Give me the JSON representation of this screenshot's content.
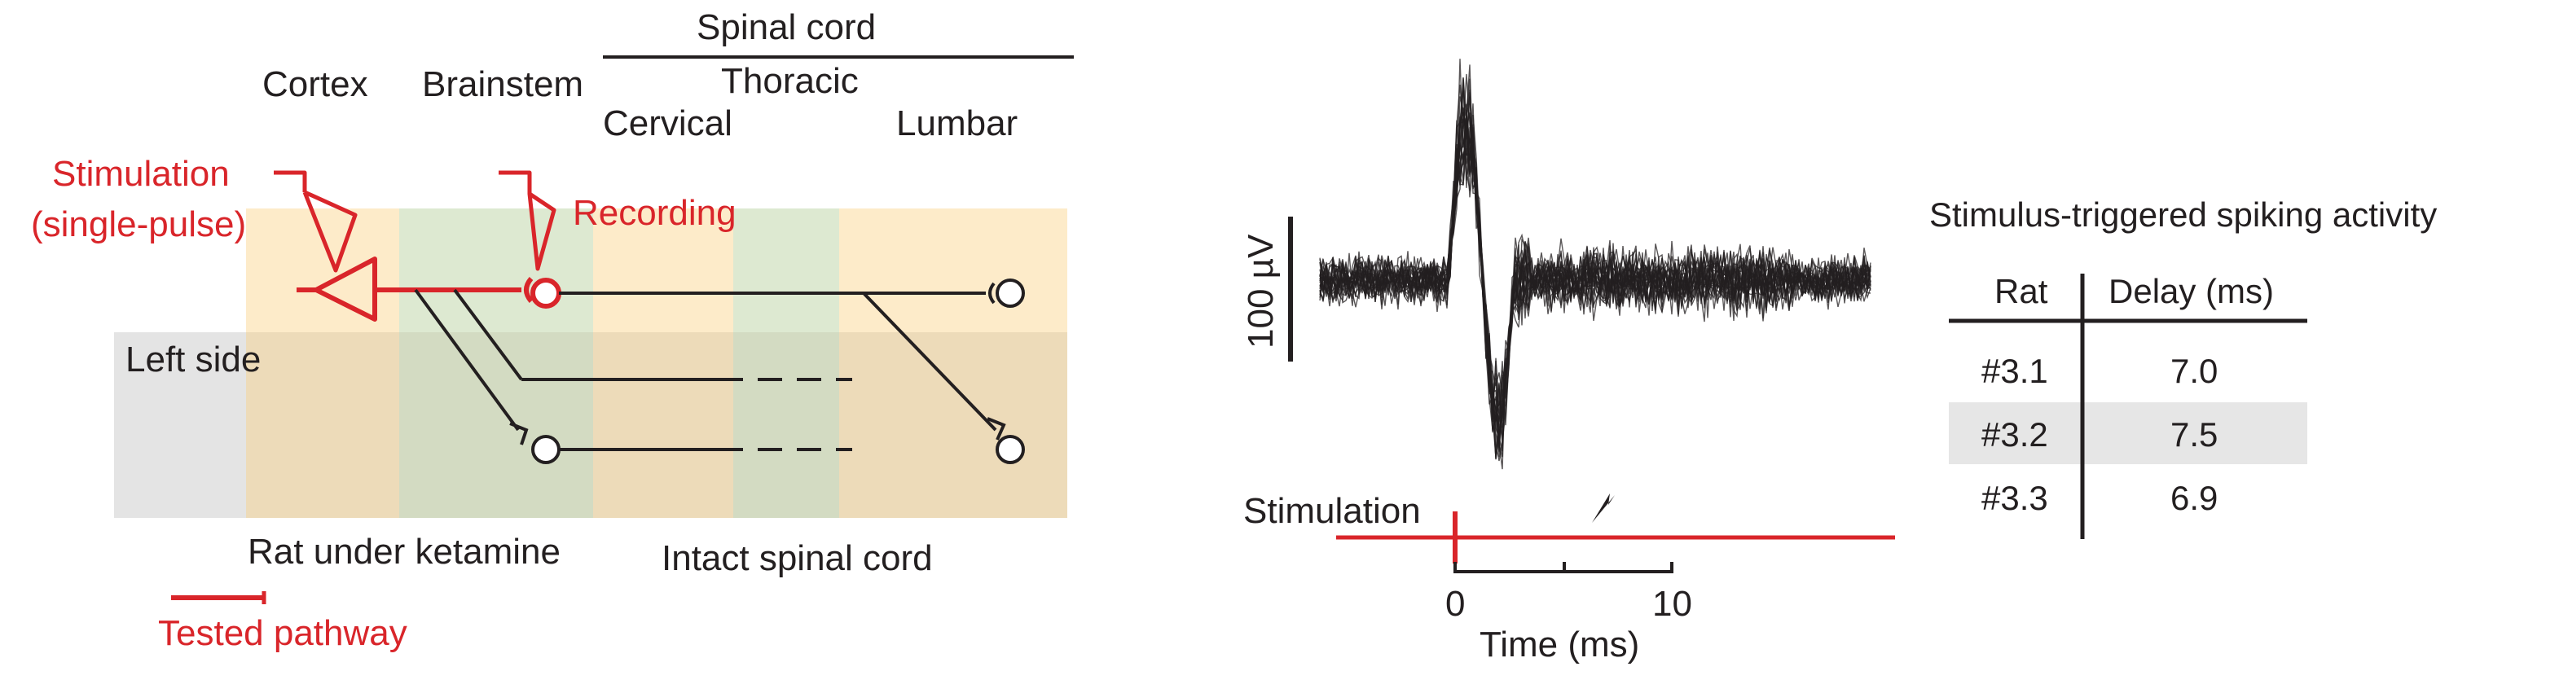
{
  "diagram": {
    "region_labels": {
      "cortex": "Cortex",
      "brainstem": "Brainstem",
      "spinal_cord": "Spinal cord",
      "thoracic": "Thoracic",
      "cervical": "Cervical",
      "lumbar": "Lumbar"
    },
    "stimulation_label_line1": "Stimulation",
    "stimulation_label_line2": "(single-pulse)",
    "recording_label": "Recording",
    "left_side_label": "Left side",
    "rat_condition_label": "Rat under ketamine",
    "spinal_condition_label": "Intact spinal cord",
    "legend_label": "Tested pathway",
    "colors": {
      "accent_red": "#d9252a",
      "cortex_band": "#fde8c0",
      "brainstem_band": "#dbe8cf",
      "left_side_band": "#e4e4e4",
      "left_side_overlap": "#eeddb2"
    }
  },
  "trace": {
    "scale_bar_label": "100 µV",
    "stimulation_label": "Stimulation",
    "x_ticks": [
      "0",
      "10"
    ],
    "x_axis_label": "Time (ms)"
  },
  "results_table": {
    "title": "Stimulus-triggered spiking activity",
    "headers": [
      "Rat",
      "Delay (ms)"
    ],
    "rows": [
      {
        "rat": "#3.1",
        "delay": "7.0"
      },
      {
        "rat": "#3.2",
        "delay": "7.5"
      },
      {
        "rat": "#3.3",
        "delay": "6.9"
      }
    ]
  }
}
